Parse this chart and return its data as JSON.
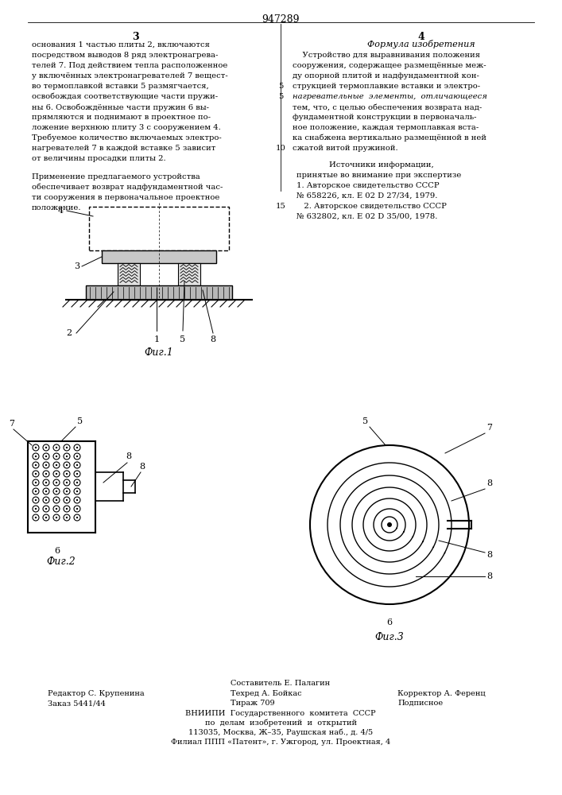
{
  "patent_number": "947289",
  "col3_header": "3",
  "col4_header": "4",
  "col3_text_a": [
    "основания 1 частью плиты 2, включаются",
    "посредством выводов 8 ряд электронагрева-",
    "телей 7. Под действием тепла расположенное",
    "у включённых электронагревателей 7 вещест-",
    "во термоплавкой вставки 5 размягчается,",
    "освобождая соответствующие части пружи-",
    "ны 6. Освобождённые части пружин 6 вы-",
    "прямляются и поднимают в проектное по-",
    "ложение верхнюю плиту 3 с сооружением 4.",
    "Требуемое количество включаемых электро-",
    "нагревателей 7 в каждой вставке 5 зависит",
    "от величины просадки плиты 2."
  ],
  "col3_text_b": [
    "Применение предлагаемого устройства",
    "обеспечивает возврат надфундаментной час-",
    "ти сооружения в первоначальное проектное",
    "положение."
  ],
  "col4_formula_header": "Формула изобретения",
  "col4_text": [
    [
      "    Устройство для выравнивания положения",
      "normal"
    ],
    [
      "сооружения, содержащее размещённые меж-",
      "normal"
    ],
    [
      "ду опорной плитой и надфундаментной кон-",
      "normal"
    ],
    [
      "струкцией термоплавкие вставки и электро-",
      "normal"
    ],
    [
      "нагревательные  элементы,  отличающееся",
      "italic"
    ],
    [
      "тем, что, с целью обеспечения возврата над-",
      "normal"
    ],
    [
      "фундаментной конструкции в первоначаль-",
      "normal"
    ],
    [
      "ное положение, каждая термоплавкая вста-",
      "normal"
    ],
    [
      "ка снабжена вертикально размещённой в ней",
      "normal"
    ],
    [
      "сжатой витой пружиной.",
      "normal"
    ]
  ],
  "col4_refs_header": "Источники информации,",
  "col4_refs": [
    "принятые во внимание при экспертизе",
    "1. Авторское свидетельство СССР",
    "№ 658226, кл. Е 02 D 27/34, 1979.",
    "   2. Авторское свидетельство СССР",
    "№ 632802, кл. Е 02 D 35/00, 1978."
  ],
  "fig1_label": "Фиг.1",
  "fig2_label": "Фиг.2",
  "fig3_label": "Фиг.3",
  "footer_composer": "Составитель Е. Палагин",
  "footer_editor": "Редактор С. Крупенина",
  "footer_order": "Заказ 5441/44",
  "footer_techred": "Техред А. Бойкас",
  "footer_tirazh": "Тираж 709",
  "footer_corrector": "Корректор А. Ференц",
  "footer_podpisnoe": "Подписное",
  "footer_vniipи": "ВНИИПИ  Государственного  комитета  СССР",
  "footer_text2": "по  делам  изобретений  и  открытий",
  "footer_text3": "113035, Москва, Ж–35, Раушская наб., д. 4/5",
  "footer_text4": "Филиал ППП «Патент», г. Ужгород, ул. Проектная, 4",
  "bg_color": "#ffffff"
}
